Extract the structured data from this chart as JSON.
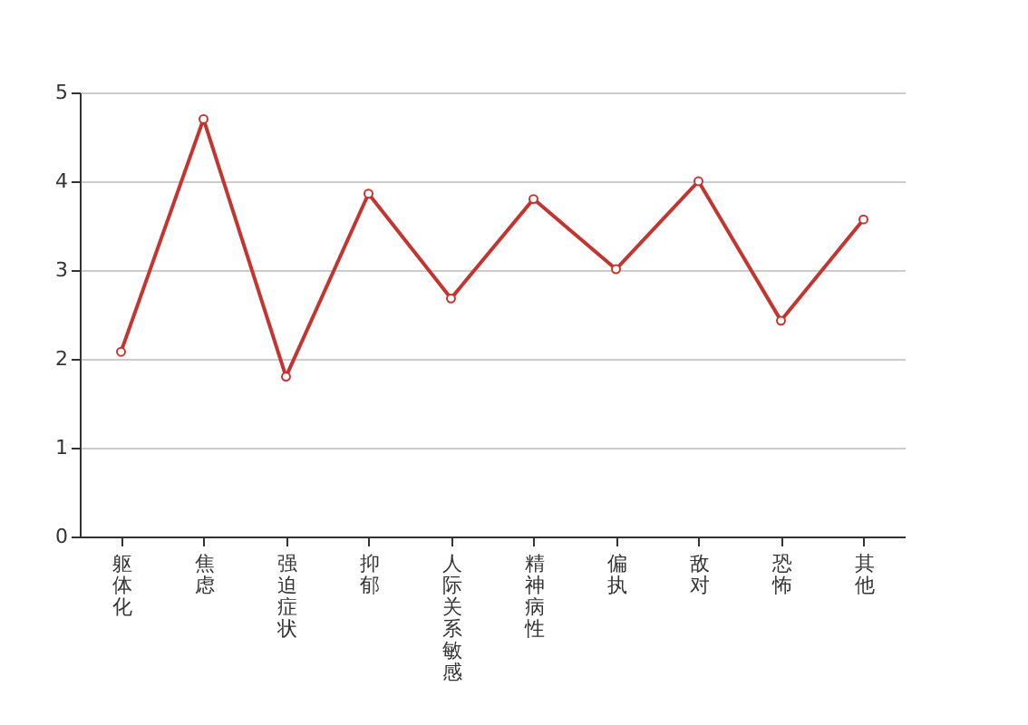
{
  "chart_data": {
    "type": "line",
    "categories": [
      "躯体化",
      "焦虑",
      "强迫症状",
      "抑郁",
      "人际关系敏感",
      "精神病性",
      "偏执",
      "敌对",
      "恐怖",
      "其他"
    ],
    "series": [
      {
        "color": "#c23531",
        "values": [
          2.08,
          4.7,
          1.8,
          3.86,
          2.68,
          3.8,
          3.01,
          4.0,
          2.43,
          3.57
        ]
      }
    ],
    "ylim": [
      0,
      5
    ],
    "yticks": [
      0,
      1,
      2,
      3,
      4,
      5
    ],
    "grid": "y",
    "marker": "circle",
    "legend": false
  }
}
